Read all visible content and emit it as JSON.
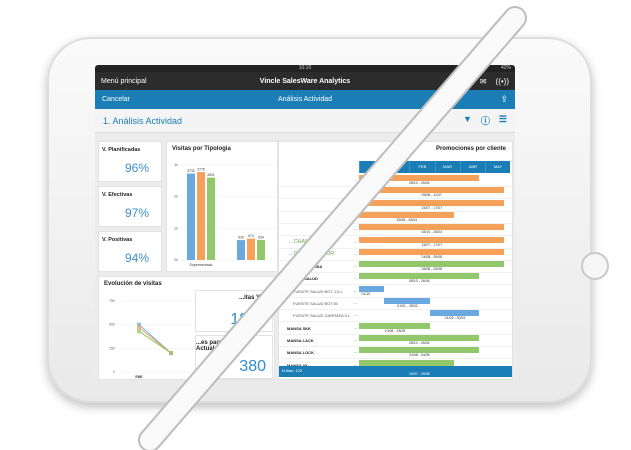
{
  "status": {
    "time": "10:10",
    "battery": "42%"
  },
  "nav": {
    "menu": "Menú principal",
    "title": "Vincle SalesWare Analytics",
    "icons": [
      "mail-icon",
      "broadcast-icon"
    ]
  },
  "bluebar": {
    "cancel": "Cancelar",
    "title": "Análisis Actividad",
    "icons": [
      "share-icon"
    ]
  },
  "page": {
    "title": "1. Análisis Actividad",
    "icons": [
      "filter-icon",
      "info-icon",
      "menu-icon"
    ]
  },
  "kpis": [
    {
      "label": "V. Planificadas",
      "value": "96%"
    },
    {
      "label": "V. Efectivas",
      "value": "97%"
    },
    {
      "label": "V. Positivas",
      "value": "94%"
    }
  ],
  "colors": {
    "blue": "#6aa9e0",
    "orange": "#f5a15a",
    "green": "#93c76b",
    "accent": "#1a7db5"
  },
  "chart_data": [
    {
      "type": "bar",
      "title": "Visitas por Tipologia",
      "categories": [
        "Supermercado",
        ""
      ],
      "yticks": [
        "0k",
        "1k",
        "2k",
        "3k"
      ],
      "ylim": [
        0,
        3000
      ],
      "series": [
        {
          "values": [
            2730,
            629
          ],
          "labels": [
            "2730",
            "629"
          ]
        },
        {
          "values": [
            2776,
            674
          ],
          "labels": [
            "2776",
            "674"
          ]
        },
        {
          "values": [
            2601,
            634
          ],
          "labels": [
            "2601",
            "634"
          ]
        }
      ]
    },
    {
      "type": "line",
      "title": "Evolución de visitas",
      "categories": [
        "ENE",
        ""
      ],
      "yticks": [
        "0",
        "250",
        "500",
        "750"
      ],
      "ylim": [
        0,
        750
      ],
      "series": [
        {
          "values": [
            500,
            200
          ]
        },
        {
          "values": [
            470,
            200
          ]
        },
        {
          "values": [
            430,
            200
          ]
        }
      ]
    }
  ],
  "ytd": {
    "label": "...itas YTD",
    "value": "1812"
  },
  "pactadas": {
    "label": "...es pactadas Mes Actual",
    "value": "380"
  },
  "gantt": {
    "title": "Promociones por cliente",
    "months": [
      "",
      "ENE",
      "FEB",
      "MAR",
      "ABR",
      "MAY"
    ],
    "rows": [
      {
        "label": "",
        "style": "",
        "color": "orange",
        "start": 0,
        "end": 4.8,
        "dates": "08/10 - 26/04"
      },
      {
        "label": "",
        "style": "",
        "color": "orange",
        "start": 0,
        "end": 5.8,
        "dates": "05/08 - 11/07"
      },
      {
        "label": "",
        "style": "",
        "color": "orange",
        "start": 0,
        "end": 5.8,
        "dates": "15/07 - 17/07"
      },
      {
        "label": "",
        "style": "",
        "color": "orange",
        "start": 0,
        "end": 3.8,
        "dates": "26/08 - 26/04"
      },
      {
        "label": "",
        "style": "",
        "color": "orange",
        "start": 0,
        "end": 5.8,
        "dates": "08/10 - 26/04"
      },
      {
        "label": "...CHAN",
        "style": "green",
        "color": "orange",
        "start": 0,
        "end": 5.8,
        "dates": "15/07 - 17/07"
      },
      {
        "label": "...O CARREFOUR",
        "style": "green",
        "color": "orange",
        "start": 0,
        "end": 5.8,
        "dates": "24/08 - 05/08"
      },
      {
        "label": "FAVORITA MANSA",
        "style": "",
        "color": "green",
        "start": 0,
        "end": 5.8,
        "dates": "26/08 - 05/08"
      },
      {
        "label": "FUENTE SALUD",
        "style": "",
        "color": "green",
        "start": 0,
        "end": 4.8,
        "dates": "08/10 - 26/04"
      },
      {
        "label": "FUENTE SALUD BOT 1,5 L",
        "style": "sub",
        "color": "blue",
        "start": 0,
        "end": 1,
        "dates": "01/10"
      },
      {
        "label": "FUENTE SALUD BOT.50",
        "style": "sub",
        "color": "blue",
        "start": 1,
        "end": 2.85,
        "dates": "01/01 - 28/02"
      },
      {
        "label": "FUENTE SALUD GARRAFA 5 L",
        "style": "sub",
        "color": "blue",
        "start": 2.85,
        "end": 4.8,
        "dates": "01/03 - 30/04"
      },
      {
        "label": "MANSA SKK",
        "style": "",
        "color": "green",
        "start": 0,
        "end": 2.85,
        "dates": "10/08 - 25/05"
      },
      {
        "label": "MANSA LACK",
        "style": "",
        "color": "green",
        "start": 0,
        "end": 4.8,
        "dates": "08/10 - 26/04"
      },
      {
        "label": "MANSA LOCK",
        "style": "",
        "color": "green",
        "start": 0,
        "end": 4.8,
        "dates": "24/08 - 04/05"
      },
      {
        "label": "MANSA 3X",
        "style": "",
        "color": "green",
        "start": 0,
        "end": 3.8,
        "dates": ""
      }
    ],
    "footer": {
      "rows": "N.filas: 120",
      "dates": "15/07 - 25/08"
    }
  }
}
